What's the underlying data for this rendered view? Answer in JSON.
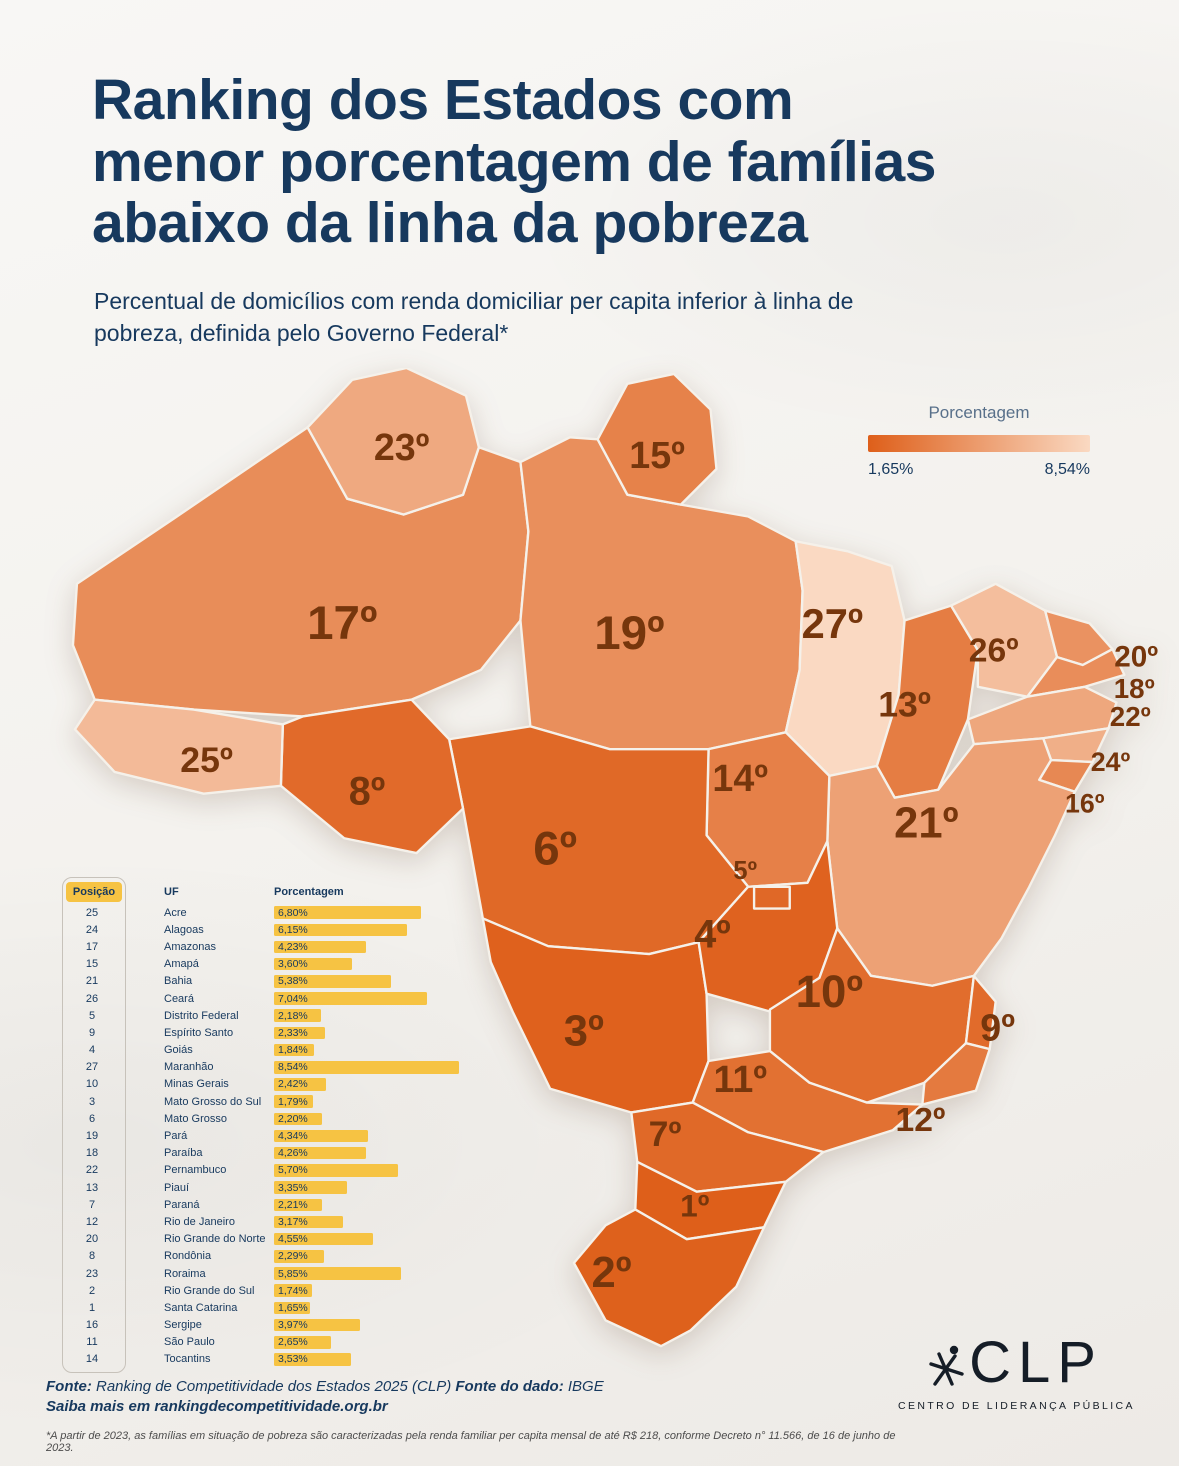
{
  "title": {
    "lines": [
      "Ranking dos Estados com",
      "menor porcentagem de famílias",
      "abaixo da linha da pobreza"
    ]
  },
  "subtitle": "Percentual de domicílios com renda domiciliar per capita inferior à linha de pobreza, definida pelo Governo Federal*",
  "legend": {
    "title": "Porcentagem",
    "min_label": "1,65%",
    "max_label": "8,54%"
  },
  "colors": {
    "navy": "#17395e",
    "accent_dark": "#de5f1a",
    "accent_light": "#fad9c2",
    "bar_yellow": "#f6c343",
    "map_label": "#76360c"
  },
  "chart_data": {
    "type": "heatmap",
    "title": "Ranking dos Estados com menor porcentagem de famílias abaixo da linha da pobreza",
    "unit": "%",
    "min": 1.65,
    "max": 8.54,
    "legend_position": "top-right",
    "states": [
      {
        "uf": "AC",
        "name": "Acre",
        "position": 25,
        "percent": "6,80%",
        "value": 6.8
      },
      {
        "uf": "AL",
        "name": "Alagoas",
        "position": 24,
        "percent": "6,15%",
        "value": 6.15
      },
      {
        "uf": "AM",
        "name": "Amazonas",
        "position": 17,
        "percent": "4,23%",
        "value": 4.23
      },
      {
        "uf": "AP",
        "name": "Amapá",
        "position": 15,
        "percent": "3,60%",
        "value": 3.6
      },
      {
        "uf": "BA",
        "name": "Bahia",
        "position": 21,
        "percent": "5,38%",
        "value": 5.38
      },
      {
        "uf": "CE",
        "name": "Ceará",
        "position": 26,
        "percent": "7,04%",
        "value": 7.04
      },
      {
        "uf": "DF",
        "name": "Distrito Federal",
        "position": 5,
        "percent": "2,18%",
        "value": 2.18
      },
      {
        "uf": "ES",
        "name": "Espírito Santo",
        "position": 9,
        "percent": "2,33%",
        "value": 2.33
      },
      {
        "uf": "GO",
        "name": "Goiás",
        "position": 4,
        "percent": "1,84%",
        "value": 1.84
      },
      {
        "uf": "MA",
        "name": "Maranhão",
        "position": 27,
        "percent": "8,54%",
        "value": 8.54
      },
      {
        "uf": "MG",
        "name": "Minas Gerais",
        "position": 10,
        "percent": "2,42%",
        "value": 2.42
      },
      {
        "uf": "MS",
        "name": "Mato Grosso do Sul",
        "position": 3,
        "percent": "1,79%",
        "value": 1.79
      },
      {
        "uf": "MT",
        "name": "Mato Grosso",
        "position": 6,
        "percent": "2,20%",
        "value": 2.2
      },
      {
        "uf": "PA",
        "name": "Pará",
        "position": 19,
        "percent": "4,34%",
        "value": 4.34
      },
      {
        "uf": "PB",
        "name": "Paraíba",
        "position": 18,
        "percent": "4,26%",
        "value": 4.26
      },
      {
        "uf": "PE",
        "name": "Pernambuco",
        "position": 22,
        "percent": "5,70%",
        "value": 5.7
      },
      {
        "uf": "PI",
        "name": "Piauí",
        "position": 13,
        "percent": "3,35%",
        "value": 3.35
      },
      {
        "uf": "PR",
        "name": "Paraná",
        "position": 7,
        "percent": "2,21%",
        "value": 2.21
      },
      {
        "uf": "RJ",
        "name": "Rio de Janeiro",
        "position": 12,
        "percent": "3,17%",
        "value": 3.17
      },
      {
        "uf": "RN",
        "name": "Rio Grande do Norte",
        "position": 20,
        "percent": "4,55%",
        "value": 4.55
      },
      {
        "uf": "RO",
        "name": "Rondônia",
        "position": 8,
        "percent": "2,29%",
        "value": 2.29
      },
      {
        "uf": "RR",
        "name": "Roraima",
        "position": 23,
        "percent": "5,85%",
        "value": 5.85
      },
      {
        "uf": "RS",
        "name": "Rio Grande do Sul",
        "position": 2,
        "percent": "1,74%",
        "value": 1.74
      },
      {
        "uf": "SC",
        "name": "Santa Catarina",
        "position": 1,
        "percent": "1,65%",
        "value": 1.65
      },
      {
        "uf": "SE",
        "name": "Sergipe",
        "position": 16,
        "percent": "3,97%",
        "value": 3.97
      },
      {
        "uf": "SP",
        "name": "São Paulo",
        "position": 11,
        "percent": "2,65%",
        "value": 2.65
      },
      {
        "uf": "TO",
        "name": "Tocantins",
        "position": 14,
        "percent": "3,53%",
        "value": 3.53
      }
    ]
  },
  "table": {
    "headers": [
      "Posição",
      "UF",
      "Porcentagem"
    ]
  },
  "footer": {
    "fonte_label": "Fonte:",
    "fonte_text": " Ranking de Competitividade dos Estados 2025 (CLP) ",
    "dado_label": "Fonte do dado:",
    "dado_text": " IBGE",
    "saiba": "Saiba mais em rankingdecompetitividade.org.br",
    "note": "*A partir de 2023, as famílias em situação de pobreza são caracterizadas pela renda familiar per capita mensal de até R$ 218, conforme Decreto n° 11.566, de 16 de junho de 2023."
  },
  "logo": {
    "name": "CLP",
    "subtitle": "CENTRO DE LIDERANÇA PÚBLICA"
  }
}
